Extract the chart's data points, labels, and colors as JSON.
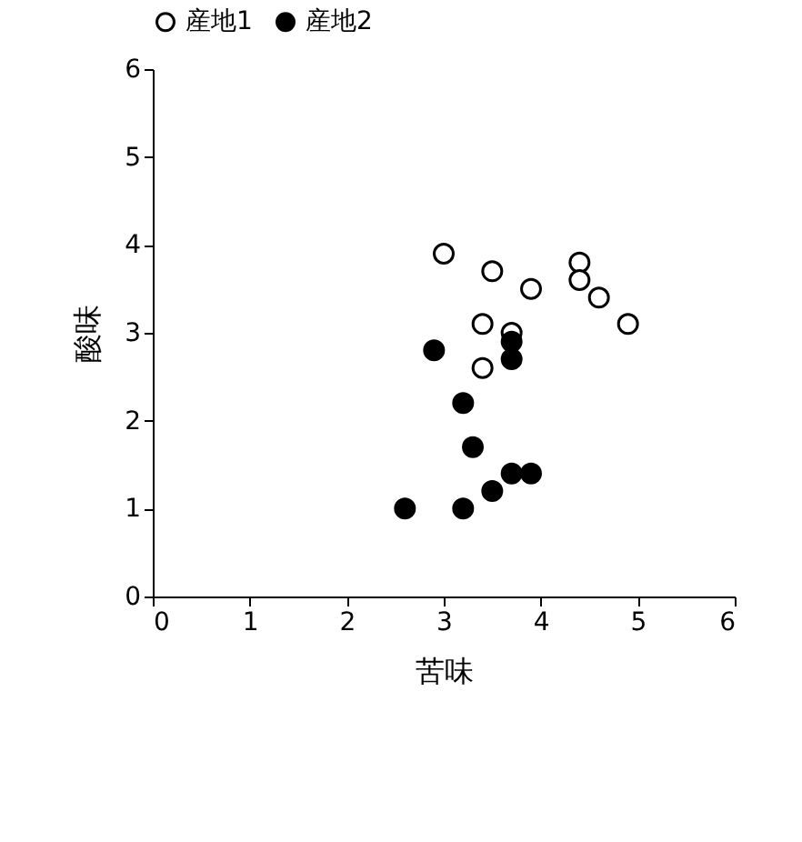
{
  "chart_data": {
    "type": "scatter",
    "xlabel": "苦味",
    "ylabel": "酸味",
    "xlim": [
      0,
      6
    ],
    "ylim": [
      0,
      6
    ],
    "xticks": [
      0,
      1,
      2,
      3,
      4,
      5,
      6
    ],
    "yticks": [
      0,
      1,
      2,
      3,
      4,
      5,
      6
    ],
    "grid": false,
    "legend": "top",
    "marker": "circle",
    "series": [
      {
        "name": "産地1",
        "color": "#ffffff",
        "x": [
          3.0,
          3.5,
          3.9,
          4.4,
          4.4,
          4.6,
          4.9,
          3.4,
          3.7,
          3.4
        ],
        "values": [
          3.9,
          3.7,
          3.5,
          3.8,
          3.6,
          3.4,
          3.1,
          3.1,
          3.0,
          2.6
        ]
      },
      {
        "name": "産地2",
        "color": "#000000",
        "x": [
          2.9,
          3.7,
          3.7,
          3.2,
          3.3,
          3.7,
          3.9,
          3.5,
          2.6,
          3.2
        ],
        "values": [
          2.8,
          2.9,
          2.7,
          2.2,
          1.7,
          1.4,
          1.4,
          1.2,
          1.0,
          1.0
        ]
      }
    ]
  }
}
